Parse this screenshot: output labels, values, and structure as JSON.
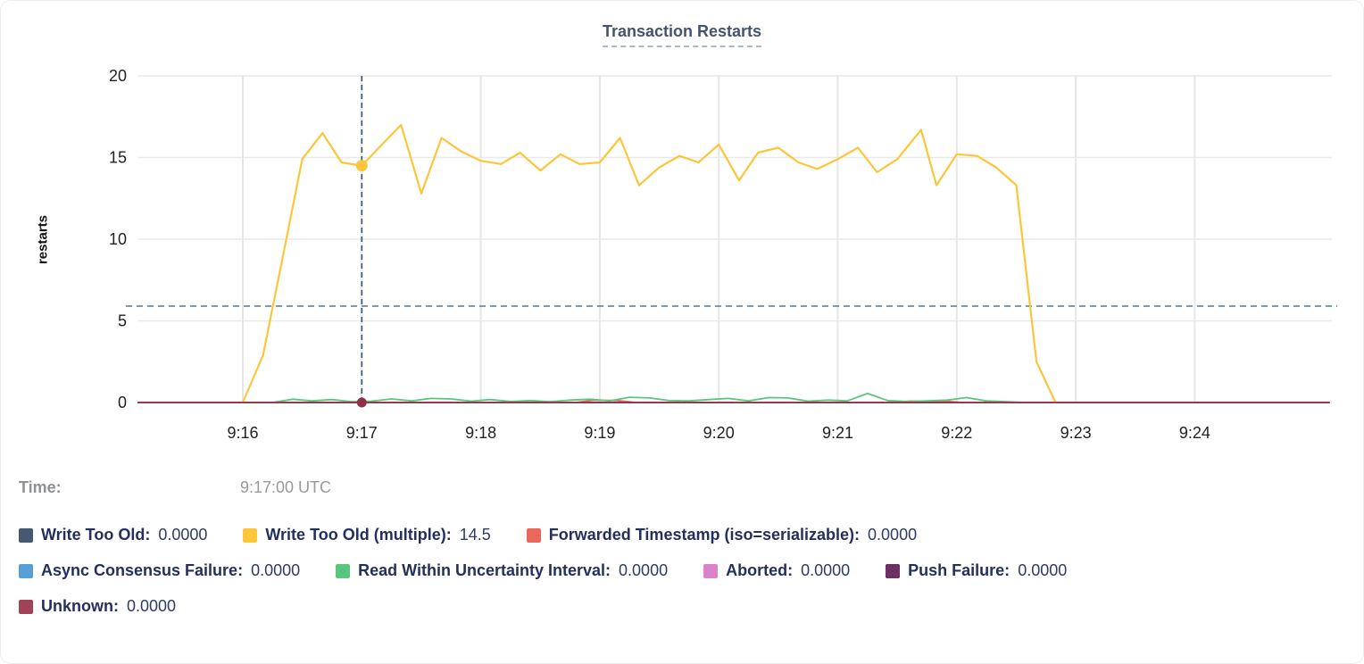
{
  "chart_data": {
    "type": "line",
    "title": "Transaction Restarts",
    "ylabel": "restarts",
    "xlabel": "",
    "ylim": [
      0,
      20
    ],
    "yticks": [
      0,
      5,
      10,
      15,
      20
    ],
    "xticks": [
      {
        "t": 16,
        "label": "9:16"
      },
      {
        "t": 17,
        "label": "9:17"
      },
      {
        "t": 18,
        "label": "9:18"
      },
      {
        "t": 19,
        "label": "9:19"
      },
      {
        "t": 20,
        "label": "9:20"
      },
      {
        "t": 21,
        "label": "9:21"
      },
      {
        "t": 22,
        "label": "9:22"
      },
      {
        "t": 23,
        "label": "9:23"
      },
      {
        "t": 24,
        "label": "9:24"
      }
    ],
    "x_domain_minutes": [
      15.12,
      25.13
    ],
    "grid": true,
    "legend_position": "bottom",
    "hover": {
      "t": 17,
      "time": "9:17:00 UTC",
      "hovered_series": "Write Too Old (multiple)",
      "hovered_value": 14.5,
      "hline_value": 5.9,
      "vline_color": "#3b5a77",
      "hline_color": "#6e89a3",
      "dot_color": "#fcc63a",
      "baseline_dot_color": "#8e3247"
    },
    "series": [
      {
        "name": "Write Too Old",
        "color": "#475872",
        "width": 1.6,
        "points": [
          [
            15.12,
            0
          ],
          [
            25.13,
            0
          ]
        ]
      },
      {
        "name": "Async Consensus Failure",
        "color": "#56a0d7",
        "width": 1.6,
        "points": [
          [
            15.12,
            0
          ],
          [
            25.13,
            0
          ]
        ]
      },
      {
        "name": "Aborted",
        "color": "#d983cb",
        "width": 1.6,
        "points": [
          [
            15.12,
            0
          ],
          [
            25.13,
            0
          ]
        ]
      },
      {
        "name": "Push Failure",
        "color": "#6e2f62",
        "width": 1.6,
        "points": [
          [
            15.12,
            0
          ],
          [
            25.13,
            0
          ]
        ]
      },
      {
        "name": "Forwarded Timestamp (iso=serializable)",
        "color": "#e8685d",
        "width": 1.8,
        "points": [
          [
            15.12,
            0
          ],
          [
            18.8,
            0
          ],
          [
            18.95,
            0.14
          ],
          [
            19.15,
            0.12
          ],
          [
            19.3,
            0
          ],
          [
            21.45,
            0
          ],
          [
            21.6,
            0.08
          ],
          [
            21.9,
            0.08
          ],
          [
            22.05,
            0
          ],
          [
            25.13,
            0
          ]
        ]
      },
      {
        "name": "Read Within Uncertainty Interval",
        "color": "#5bc57f",
        "width": 1.8,
        "points": [
          [
            16.0,
            0
          ],
          [
            16.25,
            0
          ],
          [
            16.42,
            0.2
          ],
          [
            16.58,
            0.1
          ],
          [
            16.75,
            0.18
          ],
          [
            16.92,
            0.05
          ],
          [
            17.08,
            0.08
          ],
          [
            17.25,
            0.22
          ],
          [
            17.42,
            0.1
          ],
          [
            17.58,
            0.25
          ],
          [
            17.75,
            0.22
          ],
          [
            17.92,
            0.08
          ],
          [
            18.08,
            0.18
          ],
          [
            18.25,
            0.06
          ],
          [
            18.42,
            0.12
          ],
          [
            18.58,
            0.05
          ],
          [
            18.75,
            0.15
          ],
          [
            18.92,
            0.2
          ],
          [
            19.08,
            0.1
          ],
          [
            19.25,
            0.32
          ],
          [
            19.42,
            0.28
          ],
          [
            19.58,
            0.12
          ],
          [
            19.75,
            0.1
          ],
          [
            19.92,
            0.18
          ],
          [
            20.08,
            0.25
          ],
          [
            20.25,
            0.1
          ],
          [
            20.42,
            0.3
          ],
          [
            20.58,
            0.28
          ],
          [
            20.75,
            0.08
          ],
          [
            20.92,
            0.15
          ],
          [
            21.08,
            0.1
          ],
          [
            21.25,
            0.55
          ],
          [
            21.42,
            0.12
          ],
          [
            21.58,
            0.06
          ],
          [
            21.75,
            0.1
          ],
          [
            21.92,
            0.15
          ],
          [
            22.08,
            0.3
          ],
          [
            22.25,
            0.1
          ],
          [
            22.42,
            0.05
          ],
          [
            22.58,
            0
          ]
        ]
      },
      {
        "name": "Write Too Old (multiple)",
        "color": "#fcc63a",
        "width": 2.2,
        "points": [
          [
            16.0,
            0
          ],
          [
            16.17,
            2.9
          ],
          [
            16.33,
            8.7
          ],
          [
            16.5,
            14.9
          ],
          [
            16.67,
            16.5
          ],
          [
            16.83,
            14.7
          ],
          [
            17.0,
            14.5
          ],
          [
            17.17,
            15.8
          ],
          [
            17.33,
            17.0
          ],
          [
            17.5,
            12.8
          ],
          [
            17.67,
            16.2
          ],
          [
            17.83,
            15.4
          ],
          [
            18.0,
            14.8
          ],
          [
            18.17,
            14.6
          ],
          [
            18.33,
            15.3
          ],
          [
            18.5,
            14.2
          ],
          [
            18.67,
            15.2
          ],
          [
            18.83,
            14.6
          ],
          [
            19.0,
            14.7
          ],
          [
            19.17,
            16.2
          ],
          [
            19.33,
            13.3
          ],
          [
            19.5,
            14.4
          ],
          [
            19.67,
            15.1
          ],
          [
            19.83,
            14.7
          ],
          [
            20.0,
            15.8
          ],
          [
            20.17,
            13.6
          ],
          [
            20.33,
            15.3
          ],
          [
            20.5,
            15.6
          ],
          [
            20.67,
            14.7
          ],
          [
            20.83,
            14.3
          ],
          [
            21.0,
            14.9
          ],
          [
            21.17,
            15.6
          ],
          [
            21.33,
            14.1
          ],
          [
            21.5,
            14.9
          ],
          [
            21.7,
            16.7
          ],
          [
            21.83,
            13.3
          ],
          [
            22.0,
            15.2
          ],
          [
            22.17,
            15.1
          ],
          [
            22.33,
            14.4
          ],
          [
            22.5,
            13.3
          ],
          [
            22.67,
            2.5
          ],
          [
            22.83,
            0
          ]
        ]
      },
      {
        "name": "Unknown",
        "color": "#942f46",
        "width": 1.8,
        "points": [
          [
            15.12,
            0
          ],
          [
            25.13,
            0
          ]
        ]
      }
    ]
  },
  "tooltip": {
    "label": "Time:",
    "value": "9:17:00 UTC"
  },
  "legend": {
    "rows": [
      [
        {
          "label": "Write Too Old",
          "value": "0.0000",
          "color": "#475872"
        },
        {
          "label": "Write Too Old (multiple)",
          "value": "14.5",
          "color": "#fcc63a"
        },
        {
          "label": "Forwarded Timestamp (iso=serializable)",
          "value": "0.0000",
          "color": "#e8685d"
        }
      ],
      [
        {
          "label": "Async Consensus Failure",
          "value": "0.0000",
          "color": "#56a0d7"
        },
        {
          "label": "Read Within Uncertainty Interval",
          "value": "0.0000",
          "color": "#5bc57f"
        },
        {
          "label": "Aborted",
          "value": "0.0000",
          "color": "#d983cb"
        },
        {
          "label": "Push Failure",
          "value": "0.0000",
          "color": "#6e2f62"
        }
      ],
      [
        {
          "label": "Unknown",
          "value": "0.0000",
          "color": "#a24258"
        }
      ]
    ]
  }
}
